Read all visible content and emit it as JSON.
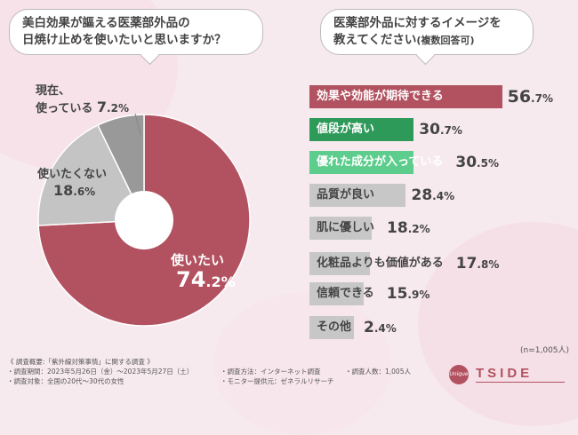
{
  "left_question": {
    "line1": "美白効果が謳える医薬部外品の",
    "line2": "日焼け止めを使いたいと思いますか？"
  },
  "right_question": {
    "line1": "医薬部外品に対するイメージを",
    "line2": "教えてください",
    "suffix": "(複数回答可)"
  },
  "sample_size": "(n=1,005人)",
  "colors": {
    "maroon": "#b2515f",
    "dark_green": "#2e9a5a",
    "light_green": "#5ccd8c",
    "gray": "#c7c7c7",
    "pie_gray_light": "#c4c4c4",
    "pie_gray_dark": "#999999"
  },
  "pie_labels": {
    "currently_using": {
      "line1": "現在、",
      "line2": "使っている",
      "value": "7",
      "unit": ".2%"
    },
    "dont_want": {
      "line1": "使いたくない",
      "value": "18",
      "unit": ".6%"
    },
    "want": {
      "line1": "使いたい",
      "value": "74",
      "unit": ".2%"
    }
  },
  "bar_labels": [
    {
      "label": "効果や効能が期待できる",
      "value": "56",
      "unit": ".7%"
    },
    {
      "label": "値段が高い",
      "value": "30",
      "unit": ".7%"
    },
    {
      "label": "優れた成分が入っている",
      "value": "30",
      "unit": ".5%"
    },
    {
      "label": "品質が良い",
      "value": "28",
      "unit": ".4%"
    },
    {
      "label": "肌に優しい",
      "value": "18",
      "unit": ".2%"
    },
    {
      "label": "化粧品よりも価値がある",
      "value": "17",
      "unit": ".8%"
    },
    {
      "label": "信頼できる",
      "value": "15",
      "unit": ".9%"
    },
    {
      "label": "その他",
      "value": "2",
      "unit": ".4%"
    }
  ],
  "footer": {
    "overview": "《 調査概要:「紫外線対策事情」に関する調査 》",
    "period": "・調査期間：2023年5月26日（金）～2023年5月27日（土）",
    "target": "・調査対象：全国の20代～30代の女性",
    "method": "・調査方法：インターネット調査",
    "provider": "・モニター提供元：ゼネラルリサーチ",
    "count": "・調査人数：1,005人"
  },
  "logo": {
    "circle_text": "Unique",
    "text": "TSIDE"
  },
  "chart_data": [
    {
      "type": "pie",
      "title": "美白効果が謳える医薬部外品の日焼け止めを使いたいと思いますか？",
      "categories": [
        "使いたい",
        "使いたくない",
        "現在、使っている"
      ],
      "values": [
        74.2,
        18.6,
        7.2
      ],
      "unit": "%"
    },
    {
      "type": "bar",
      "orientation": "horizontal",
      "title": "医薬部外品に対するイメージを教えてください(複数回答可)",
      "categories": [
        "効果や効能が期待できる",
        "値段が高い",
        "優れた成分が入っている",
        "品質が良い",
        "肌に優しい",
        "化粧品よりも価値がある",
        "信頼できる",
        "その他"
      ],
      "values": [
        56.7,
        30.7,
        30.5,
        28.4,
        18.2,
        17.8,
        15.9,
        2.4
      ],
      "unit": "%",
      "xlim": [
        0,
        60
      ]
    }
  ]
}
